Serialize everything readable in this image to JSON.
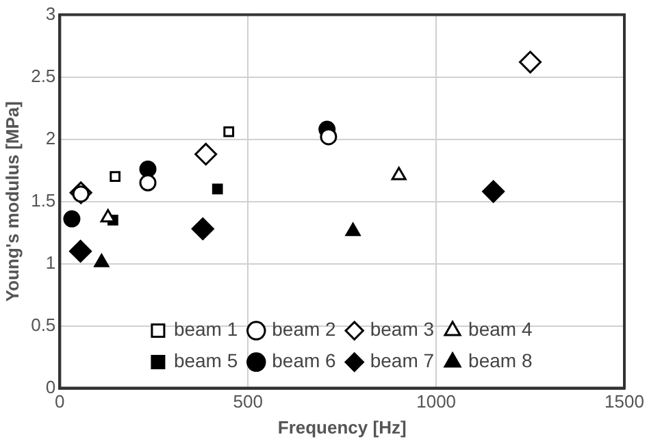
{
  "chart_data": {
    "type": "scatter",
    "xlabel": "Frequency [Hz]",
    "ylabel": "Young's modulus [MPa]",
    "xlim": [
      0,
      1500
    ],
    "xticks": [
      0,
      500,
      1000,
      1500
    ],
    "ylim": [
      0,
      3
    ],
    "yticks": [
      0,
      0.5,
      1,
      1.5,
      2,
      2.5,
      3
    ],
    "grid": true,
    "legend": "bottom",
    "series": [
      {
        "name": "beam 1",
        "color": "#ffffff",
        "marker": "square",
        "x": [
          147,
          449
        ],
        "values": [
          1.7,
          2.06
        ]
      },
      {
        "name": "beam 2",
        "color": "#ffffff",
        "marker": "circle",
        "x": [
          56,
          234,
          714
        ],
        "values": [
          1.56,
          1.65,
          2.02
        ]
      },
      {
        "name": "beam 3",
        "color": "#ffffff",
        "marker": "diamond",
        "x": [
          56,
          388,
          1250
        ],
        "values": [
          1.57,
          1.88,
          2.62
        ]
      },
      {
        "name": "beam 4",
        "color": "#ffffff",
        "marker": "triangle",
        "x": [
          128,
          901
        ],
        "values": [
          1.37,
          1.71
        ]
      },
      {
        "name": "beam 5",
        "color": "#000000",
        "marker": "square",
        "x": [
          141,
          419
        ],
        "values": [
          1.35,
          1.6
        ]
      },
      {
        "name": "beam 6",
        "color": "#000000",
        "marker": "circle",
        "x": [
          32,
          234,
          710
        ],
        "values": [
          1.36,
          1.76,
          2.08
        ]
      },
      {
        "name": "beam 7",
        "color": "#000000",
        "marker": "diamond",
        "x": [
          55,
          380,
          1152
        ],
        "values": [
          1.1,
          1.28,
          1.58
        ]
      },
      {
        "name": "beam 8",
        "color": "#000000",
        "marker": "triangle",
        "x": [
          111,
          779
        ],
        "values": [
          1.01,
          1.26
        ]
      }
    ]
  }
}
